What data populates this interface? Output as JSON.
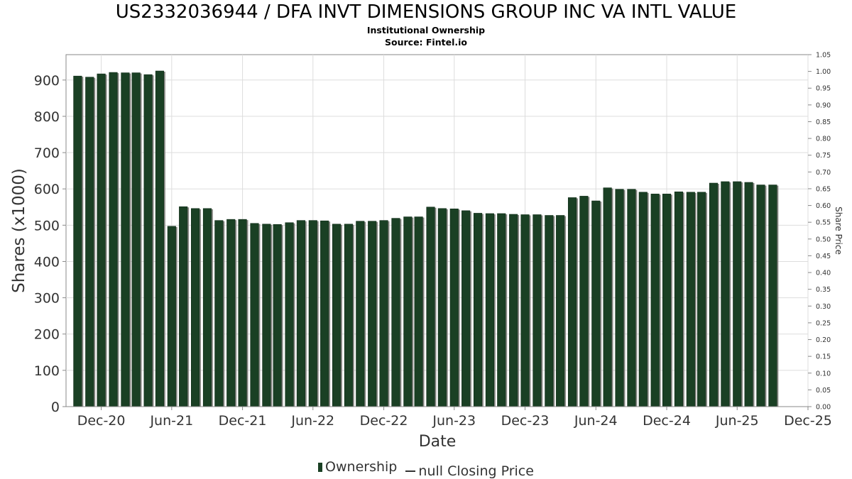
{
  "header": {
    "title": "US2332036944 / DFA INVT DIMENSIONS GROUP INC VA INTL VALUE",
    "subtitle": "Institutional Ownership",
    "source": "Source: Fintel.io"
  },
  "legend": {
    "ownership": "Ownership",
    "price": "null Closing Price"
  },
  "colors": {
    "bar": "#1a4024",
    "bar_shadow": "#8a8a86",
    "grid": "#dddddd",
    "axis": "#888888"
  },
  "chart_data": {
    "type": "bar",
    "xlabel": "Date",
    "ylabel": "Shares (x1000)",
    "y2label": "Share Price",
    "xlim": [
      "2020-09-01",
      "2025-12-01"
    ],
    "ylim": [
      0,
      970
    ],
    "y2lim": [
      0,
      1.05
    ],
    "grid": true,
    "legend_position": "bottom",
    "x_ticks": [
      "Dec-20",
      "Jun-21",
      "Dec-21",
      "Jun-22",
      "Dec-22",
      "Jun-23",
      "Dec-23",
      "Jun-24",
      "Dec-24",
      "Jun-25",
      "Dec-25"
    ],
    "x_tick_dates": [
      "2020-12-01",
      "2021-06-01",
      "2021-12-01",
      "2022-06-01",
      "2022-12-01",
      "2023-06-01",
      "2023-12-01",
      "2024-06-01",
      "2024-12-01",
      "2025-06-01",
      "2025-12-01"
    ],
    "y_ticks": [
      0,
      100,
      200,
      300,
      400,
      500,
      600,
      700,
      800,
      900
    ],
    "y2_ticks": [
      "0.00",
      "0.05",
      "0.10",
      "0.15",
      "0.20",
      "0.25",
      "0.30",
      "0.35",
      "0.40",
      "0.45",
      "0.50",
      "0.55",
      "0.60",
      "0.65",
      "0.70",
      "0.75",
      "0.80",
      "0.85",
      "0.90",
      "0.95",
      "1.00",
      "1.05"
    ],
    "series": [
      {
        "name": "Ownership",
        "x": [
          "2020-10-01",
          "2020-11-01",
          "2020-12-01",
          "2021-01-01",
          "2021-02-01",
          "2021-03-01",
          "2021-04-01",
          "2021-05-01",
          "2021-06-01",
          "2021-07-01",
          "2021-08-01",
          "2021-09-01",
          "2021-10-01",
          "2021-11-01",
          "2021-12-01",
          "2022-01-01",
          "2022-02-01",
          "2022-03-01",
          "2022-04-01",
          "2022-05-01",
          "2022-06-01",
          "2022-07-01",
          "2022-08-01",
          "2022-09-01",
          "2022-10-01",
          "2022-11-01",
          "2022-12-01",
          "2023-01-01",
          "2023-02-01",
          "2023-03-01",
          "2023-04-01",
          "2023-05-01",
          "2023-06-01",
          "2023-07-01",
          "2023-08-01",
          "2023-09-01",
          "2023-10-01",
          "2023-11-01",
          "2023-12-01",
          "2024-01-01",
          "2024-02-01",
          "2024-03-01",
          "2024-04-01",
          "2024-05-01",
          "2024-06-01",
          "2024-07-01",
          "2024-08-01",
          "2024-09-01",
          "2024-10-01",
          "2024-11-01",
          "2024-12-01",
          "2025-01-01",
          "2025-02-01",
          "2025-03-01",
          "2025-04-01",
          "2025-05-01",
          "2025-06-01",
          "2025-07-01",
          "2025-08-01",
          "2025-09-01"
        ],
        "values": [
          911,
          908,
          917,
          921,
          920,
          920,
          915,
          925,
          497,
          551,
          546,
          546,
          513,
          516,
          516,
          505,
          503,
          502,
          507,
          513,
          513,
          512,
          503,
          503,
          511,
          511,
          513,
          519,
          523,
          523,
          550,
          546,
          545,
          540,
          533,
          532,
          532,
          530,
          529,
          529,
          527,
          527,
          576,
          580,
          567,
          603,
          599,
          599,
          591,
          586,
          586,
          592,
          591,
          591,
          616,
          620,
          620,
          618,
          611,
          611
        ]
      }
    ]
  }
}
